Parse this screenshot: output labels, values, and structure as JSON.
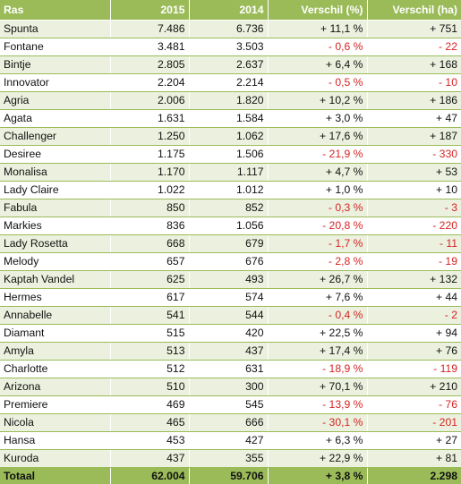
{
  "table": {
    "headers": [
      "Ras",
      "2015",
      "2014",
      "Verschil (%)",
      "Verschil (ha)"
    ],
    "rows": [
      [
        "Spunta",
        "7.486",
        "6.736",
        "+ 11,1 %",
        "+ 751"
      ],
      [
        "Fontane",
        "3.481",
        "3.503",
        "- 0,6 %",
        "- 22"
      ],
      [
        "Bintje",
        "2.805",
        "2.637",
        "+ 6,4 %",
        "+ 168"
      ],
      [
        "Innovator",
        "2.204",
        "2.214",
        "- 0,5 %",
        "- 10"
      ],
      [
        "Agria",
        "2.006",
        "1.820",
        "+ 10,2 %",
        "+ 186"
      ],
      [
        "Agata",
        "1.631",
        "1.584",
        "+ 3,0 %",
        "+ 47"
      ],
      [
        "Challenger",
        "1.250",
        "1.062",
        "+ 17,6 %",
        "+ 187"
      ],
      [
        "Desiree",
        "1.175",
        "1.506",
        "- 21,9 %",
        "- 330"
      ],
      [
        "Monalisa",
        "1.170",
        "1.117",
        "+ 4,7 %",
        "+ 53"
      ],
      [
        "Lady Claire",
        "1.022",
        "1.012",
        "+ 1,0 %",
        "+ 10"
      ],
      [
        "Fabula",
        "850",
        "852",
        "- 0,3 %",
        "- 3"
      ],
      [
        "Markies",
        "836",
        "1.056",
        "- 20,8 %",
        "- 220"
      ],
      [
        "Lady Rosetta",
        "668",
        "679",
        "- 1,7 %",
        "- 11"
      ],
      [
        "Melody",
        "657",
        "676",
        "- 2,8 %",
        "- 19"
      ],
      [
        "Kaptah Vandel",
        "625",
        "493",
        "+ 26,7 %",
        "+ 132"
      ],
      [
        "Hermes",
        "617",
        "574",
        "+ 7,6 %",
        "+ 44"
      ],
      [
        "Annabelle",
        "541",
        "544",
        "- 0,4 %",
        "- 2"
      ],
      [
        "Diamant",
        "515",
        "420",
        "+ 22,5 %",
        "+ 94"
      ],
      [
        "Amyla",
        "513",
        "437",
        "+ 17,4 %",
        "+ 76"
      ],
      [
        "Charlotte",
        "512",
        "631",
        "- 18,9 %",
        "- 119"
      ],
      [
        "Arizona",
        "510",
        "300",
        "+ 70,1 %",
        "+ 210"
      ],
      [
        "Premiere",
        "469",
        "545",
        "- 13,9 %",
        "- 76"
      ],
      [
        "Nicola",
        "465",
        "666",
        "- 30,1 %",
        "- 201"
      ],
      [
        "Hansa",
        "453",
        "427",
        "+ 6,3 %",
        "+ 27"
      ],
      [
        "Kuroda",
        "437",
        "355",
        "+ 22,9 %",
        "+ 81"
      ]
    ],
    "total": [
      "Totaal",
      "62.004",
      "59.706",
      "+ 3,8 %",
      "2.298"
    ]
  },
  "colors": {
    "header_bg": "#9bbb59",
    "band_bg": "#ebf1de",
    "negative_text": "#d62323"
  }
}
